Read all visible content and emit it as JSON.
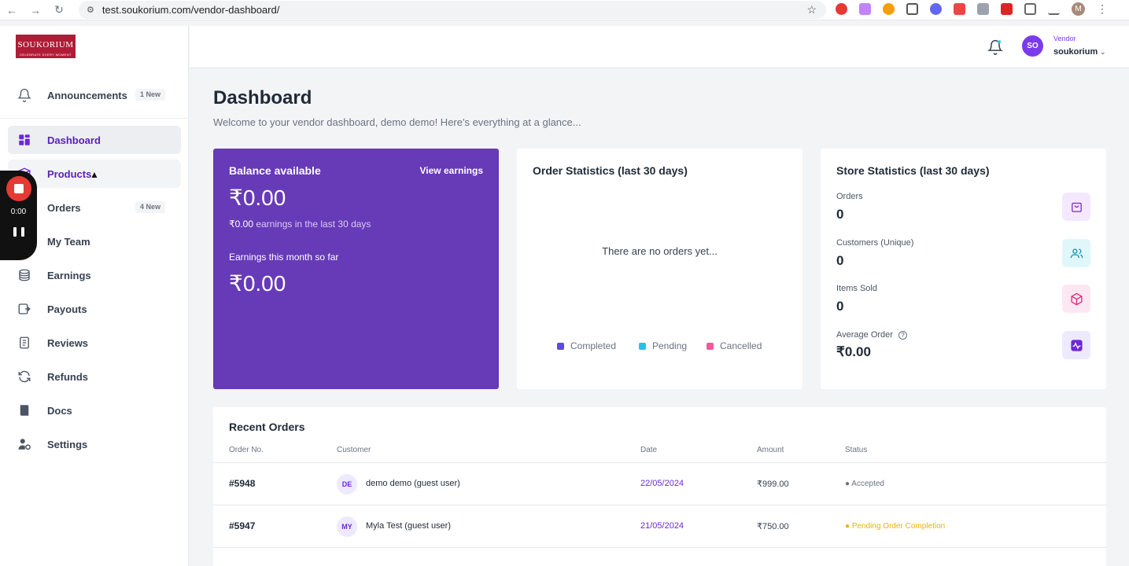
{
  "browser": {
    "url": "test.soukorium.com/vendor-dashboard/",
    "profile_initial": "M"
  },
  "brand": {
    "logo_text": "SOUKORIUM",
    "logo_tagline": "CELEBRATE EVERY MOMENT",
    "primary_color": "#673ab7",
    "logo_color": "#b01c36"
  },
  "sidebar": {
    "items": [
      {
        "label": "Announcements",
        "icon": "bell-icon",
        "badge": "1 New"
      },
      {
        "label": "Dashboard",
        "icon": "grid-icon"
      },
      {
        "label": "Products",
        "icon": "box-icon"
      },
      {
        "label": "Orders",
        "icon": "cart-icon",
        "badge": "4 New"
      },
      {
        "label": "My Team",
        "icon": "team-icon"
      },
      {
        "label": "Earnings",
        "icon": "coins-icon"
      },
      {
        "label": "Payouts",
        "icon": "payout-icon"
      },
      {
        "label": "Reviews",
        "icon": "clipboard-icon"
      },
      {
        "label": "Refunds",
        "icon": "refresh-icon"
      },
      {
        "label": "Docs",
        "icon": "book-icon"
      },
      {
        "label": "Settings",
        "icon": "user-gear-icon"
      }
    ]
  },
  "recorder": {
    "time": "0:00"
  },
  "topbar": {
    "avatar_initials": "SO",
    "role": "Vendor",
    "username": "soukorium"
  },
  "main": {
    "title": "Dashboard",
    "subtitle": "Welcome to your vendor dashboard, demo demo! Here's everything at a glance..."
  },
  "balance": {
    "title": "Balance available",
    "link": "View earnings",
    "amount": "₹0.00",
    "earnings_amount": "₹0.00",
    "earnings_text": " earnings in the last 30 days",
    "month_label": "Earnings this month so far",
    "month_amount": "₹0.00"
  },
  "order_stats": {
    "title": "Order Statistics (last 30 days)",
    "empty": "There are no orders yet...",
    "legend": [
      {
        "label": "Completed",
        "color": "#5b4be0"
      },
      {
        "label": "Pending",
        "color": "#22c4e8"
      },
      {
        "label": "Cancelled",
        "color": "#ec5b9c"
      }
    ]
  },
  "store_stats": {
    "title": "Store Statistics (last 30 days)",
    "stats": [
      {
        "label": "Orders",
        "value": "0",
        "icon": "bag-icon",
        "bg": "#f3e8ff",
        "fg": "#7e22ce"
      },
      {
        "label": "Customers (Unique)",
        "value": "0",
        "icon": "users-icon",
        "bg": "#e0f7fa",
        "fg": "#0891b2"
      },
      {
        "label": "Items Sold",
        "value": "0",
        "icon": "cube-icon",
        "bg": "#fce7f3",
        "fg": "#db2777"
      },
      {
        "label": "Average Order",
        "value": "₹0.00",
        "icon": "activity-icon",
        "bg": "#ede9fe",
        "fg": "#6d28d9"
      }
    ]
  },
  "recent_orders": {
    "title": "Recent Orders",
    "columns": [
      "Order No.",
      "Customer",
      "Date",
      "Amount",
      "Status"
    ],
    "rows": [
      {
        "order": "#5948",
        "initials": "DE",
        "customer": "demo demo (guest user)",
        "date": "22/05/2024",
        "amount": "₹999.00",
        "status": "Accepted",
        "status_color": "#6b7280"
      },
      {
        "order": "#5947",
        "initials": "MY",
        "customer": "Myla Test (guest user)",
        "date": "21/05/2024",
        "amount": "₹750.00",
        "status": "Pending Order Completion",
        "status_color": "#eab308"
      }
    ]
  }
}
